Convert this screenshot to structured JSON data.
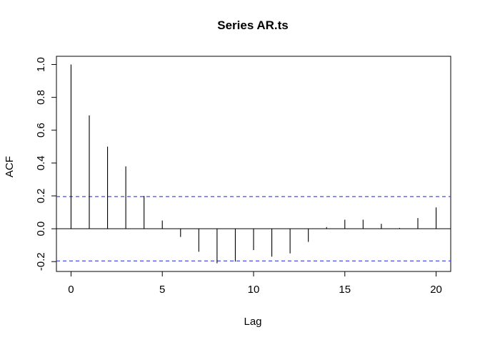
{
  "chart_data": {
    "type": "bar",
    "title": "Series  AR.ts",
    "xlabel": "Lag",
    "ylabel": "ACF",
    "xlim": [
      -0.8,
      20.8
    ],
    "ylim": [
      -0.26,
      1.05
    ],
    "x_ticks": [
      "0",
      "5",
      "10",
      "15",
      "20"
    ],
    "y_ticks": [
      "-0.2",
      "0.0",
      "0.2",
      "0.4",
      "0.6",
      "0.8",
      "1.0"
    ],
    "lags": [
      0,
      1,
      2,
      3,
      4,
      5,
      6,
      7,
      8,
      9,
      10,
      11,
      12,
      13,
      14,
      15,
      16,
      17,
      18,
      19,
      20
    ],
    "values": [
      1.0,
      0.69,
      0.5,
      0.38,
      0.2,
      0.05,
      -0.05,
      -0.14,
      -0.21,
      -0.2,
      -0.13,
      -0.17,
      -0.15,
      -0.08,
      0.01,
      0.055,
      0.055,
      0.03,
      0.005,
      0.065,
      0.13
    ],
    "confidence_bounds": [
      0.196,
      -0.196
    ],
    "confidence_color": "#4a4af0",
    "grid": false
  }
}
